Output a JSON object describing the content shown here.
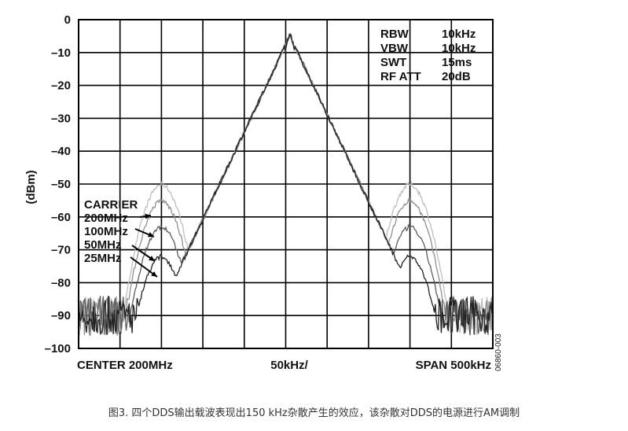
{
  "chart_data": {
    "type": "line",
    "ylabel": "(dBm)",
    "ylim": [
      -100,
      0
    ],
    "y_ticks": [
      0,
      -10,
      -20,
      -30,
      -40,
      -50,
      -60,
      -70,
      -80,
      -90,
      -100
    ],
    "y_tick_labels": [
      "0",
      "–10",
      "–20",
      "–30",
      "–40",
      "–50",
      "–60",
      "–70",
      "–80",
      "–90",
      "–100"
    ],
    "x_labels": {
      "left": "CENTER 200MHz",
      "middle": "50kHz/",
      "right": "SPAN 500kHz"
    },
    "x_unit_note": "frequency offset from center, kHz",
    "xlim": [
      -250,
      250
    ],
    "grid": true,
    "info_box": [
      {
        "key": "RBW",
        "value": "10kHz"
      },
      {
        "key": "VBW",
        "value": "10kHz"
      },
      {
        "key": "SWT",
        "value": "15ms"
      },
      {
        "key": "RF ATT",
        "value": "20dB"
      }
    ],
    "carrier_label": "CARRIER",
    "legend_labels": [
      "200MHz",
      "100MHz",
      "50MHz",
      "25MHz"
    ],
    "main_peak": {
      "x": 5,
      "y": -5
    },
    "spur_offsets_khz": [
      -150,
      150
    ],
    "spur_peaks_dbm": [
      -50,
      -55,
      -63,
      -72
    ],
    "noise_floor_dbm": -90,
    "figure_id": "06860-003",
    "series_colors": [
      "#bdbdbd",
      "#8f8f8f",
      "#5c5c5c",
      "#222222"
    ]
  },
  "caption": "图3. 四个DDS输出载波表现出150 kHz杂散产生的效应，该杂散对DDS的电源进行AM调制"
}
